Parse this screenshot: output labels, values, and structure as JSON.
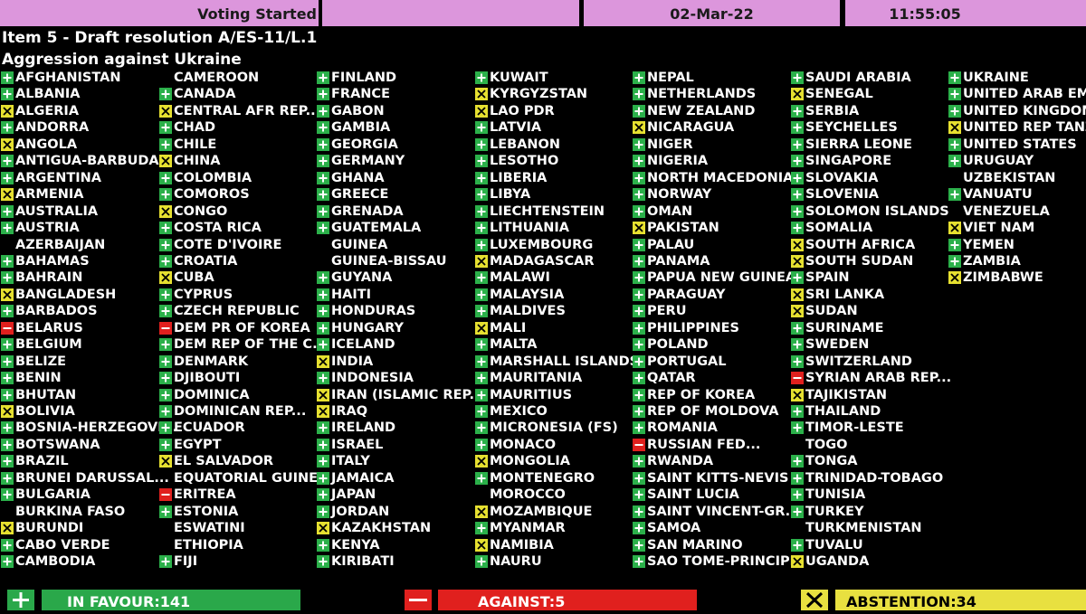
{
  "header": {
    "status": "Voting Started",
    "date": "02-Mar-22",
    "time": "11:55:05"
  },
  "item": {
    "title": "Item 5 - Draft resolution A/ES-11/L.1",
    "subject": "Aggression against Ukraine"
  },
  "columns": [
    [
      {
        "name": "AFGHANISTAN",
        "vote": "yes"
      },
      {
        "name": "ALBANIA",
        "vote": "yes"
      },
      {
        "name": "ALGERIA",
        "vote": "abstain"
      },
      {
        "name": "ANDORRA",
        "vote": "yes"
      },
      {
        "name": "ANGOLA",
        "vote": "abstain"
      },
      {
        "name": "ANTIGUA-BARBUDA",
        "vote": "yes"
      },
      {
        "name": "ARGENTINA",
        "vote": "yes"
      },
      {
        "name": "ARMENIA",
        "vote": "abstain"
      },
      {
        "name": "AUSTRALIA",
        "vote": "yes"
      },
      {
        "name": "AUSTRIA",
        "vote": "yes"
      },
      {
        "name": "AZERBAIJAN"
      },
      {
        "name": "BAHAMAS",
        "vote": "yes"
      },
      {
        "name": "BAHRAIN",
        "vote": "yes"
      },
      {
        "name": "BANGLADESH",
        "vote": "abstain"
      },
      {
        "name": "BARBADOS",
        "vote": "yes"
      },
      {
        "name": "BELARUS",
        "vote": "no"
      },
      {
        "name": "BELGIUM",
        "vote": "yes"
      },
      {
        "name": "BELIZE",
        "vote": "yes"
      },
      {
        "name": "BENIN",
        "vote": "yes"
      },
      {
        "name": "BHUTAN",
        "vote": "yes"
      },
      {
        "name": "BOLIVIA",
        "vote": "abstain"
      },
      {
        "name": "BOSNIA-HERZEGOVI...",
        "vote": "yes"
      },
      {
        "name": "BOTSWANA",
        "vote": "yes"
      },
      {
        "name": "BRAZIL",
        "vote": "yes"
      },
      {
        "name": "BRUNEI DARUSSAL...",
        "vote": "yes"
      },
      {
        "name": "BULGARIA",
        "vote": "yes"
      },
      {
        "name": "BURKINA FASO"
      },
      {
        "name": "BURUNDI",
        "vote": "abstain"
      },
      {
        "name": "CABO VERDE",
        "vote": "yes"
      },
      {
        "name": "CAMBODIA",
        "vote": "yes"
      }
    ],
    [
      {
        "name": "CAMEROON"
      },
      {
        "name": "CANADA",
        "vote": "yes"
      },
      {
        "name": "CENTRAL AFR REP....",
        "vote": "abstain"
      },
      {
        "name": "CHAD",
        "vote": "yes"
      },
      {
        "name": "CHILE",
        "vote": "yes"
      },
      {
        "name": "CHINA",
        "vote": "abstain"
      },
      {
        "name": "COLOMBIA",
        "vote": "yes"
      },
      {
        "name": "COMOROS",
        "vote": "yes"
      },
      {
        "name": "CONGO",
        "vote": "abstain"
      },
      {
        "name": "COSTA RICA",
        "vote": "yes"
      },
      {
        "name": "COTE D'IVOIRE",
        "vote": "yes"
      },
      {
        "name": "CROATIA",
        "vote": "yes"
      },
      {
        "name": "CUBA",
        "vote": "abstain"
      },
      {
        "name": "CYPRUS",
        "vote": "yes"
      },
      {
        "name": "CZECH REPUBLIC",
        "vote": "yes"
      },
      {
        "name": "DEM PR OF KOREA",
        "vote": "no"
      },
      {
        "name": "DEM REP OF THE C...",
        "vote": "yes"
      },
      {
        "name": "DENMARK",
        "vote": "yes"
      },
      {
        "name": "DJIBOUTI",
        "vote": "yes"
      },
      {
        "name": "DOMINICA",
        "vote": "yes"
      },
      {
        "name": "DOMINICAN REP...",
        "vote": "yes"
      },
      {
        "name": "ECUADOR",
        "vote": "yes"
      },
      {
        "name": "EGYPT",
        "vote": "yes"
      },
      {
        "name": "EL SALVADOR",
        "vote": "abstain"
      },
      {
        "name": "EQUATORIAL GUINEA"
      },
      {
        "name": "ERITREA",
        "vote": "no"
      },
      {
        "name": "ESTONIA",
        "vote": "yes"
      },
      {
        "name": "ESWATINI"
      },
      {
        "name": "ETHIOPIA"
      },
      {
        "name": "FIJI",
        "vote": "yes"
      }
    ],
    [
      {
        "name": "FINLAND",
        "vote": "yes"
      },
      {
        "name": "FRANCE",
        "vote": "yes"
      },
      {
        "name": "GABON",
        "vote": "yes"
      },
      {
        "name": "GAMBIA",
        "vote": "yes"
      },
      {
        "name": "GEORGIA",
        "vote": "yes"
      },
      {
        "name": "GERMANY",
        "vote": "yes"
      },
      {
        "name": "GHANA",
        "vote": "yes"
      },
      {
        "name": "GREECE",
        "vote": "yes"
      },
      {
        "name": "GRENADA",
        "vote": "yes"
      },
      {
        "name": "GUATEMALA",
        "vote": "yes"
      },
      {
        "name": "GUINEA"
      },
      {
        "name": "GUINEA-BISSAU"
      },
      {
        "name": "GUYANA",
        "vote": "yes"
      },
      {
        "name": "HAITI",
        "vote": "yes"
      },
      {
        "name": "HONDURAS",
        "vote": "yes"
      },
      {
        "name": "HUNGARY",
        "vote": "yes"
      },
      {
        "name": "ICELAND",
        "vote": "yes"
      },
      {
        "name": "INDIA",
        "vote": "abstain"
      },
      {
        "name": "INDONESIA",
        "vote": "yes"
      },
      {
        "name": "IRAN (ISLAMIC REP...",
        "vote": "abstain"
      },
      {
        "name": "IRAQ",
        "vote": "abstain"
      },
      {
        "name": "IRELAND",
        "vote": "yes"
      },
      {
        "name": "ISRAEL",
        "vote": "yes"
      },
      {
        "name": "ITALY",
        "vote": "yes"
      },
      {
        "name": "JAMAICA",
        "vote": "yes"
      },
      {
        "name": "JAPAN",
        "vote": "yes"
      },
      {
        "name": "JORDAN",
        "vote": "yes"
      },
      {
        "name": "KAZAKHSTAN",
        "vote": "abstain"
      },
      {
        "name": "KENYA",
        "vote": "yes"
      },
      {
        "name": "KIRIBATI",
        "vote": "yes"
      }
    ],
    [
      {
        "name": "KUWAIT",
        "vote": "yes"
      },
      {
        "name": "KYRGYZSTAN",
        "vote": "abstain"
      },
      {
        "name": "LAO PDR",
        "vote": "abstain"
      },
      {
        "name": "LATVIA",
        "vote": "yes"
      },
      {
        "name": "LEBANON",
        "vote": "yes"
      },
      {
        "name": "LESOTHO",
        "vote": "yes"
      },
      {
        "name": "LIBERIA",
        "vote": "yes"
      },
      {
        "name": "LIBYA",
        "vote": "yes"
      },
      {
        "name": "LIECHTENSTEIN",
        "vote": "yes"
      },
      {
        "name": "LITHUANIA",
        "vote": "yes"
      },
      {
        "name": "LUXEMBOURG",
        "vote": "yes"
      },
      {
        "name": "MADAGASCAR",
        "vote": "abstain"
      },
      {
        "name": "MALAWI",
        "vote": "yes"
      },
      {
        "name": "MALAYSIA",
        "vote": "yes"
      },
      {
        "name": "MALDIVES",
        "vote": "yes"
      },
      {
        "name": "MALI",
        "vote": "abstain"
      },
      {
        "name": "MALTA",
        "vote": "yes"
      },
      {
        "name": "MARSHALL ISLANDS",
        "vote": "yes"
      },
      {
        "name": "MAURITANIA",
        "vote": "yes"
      },
      {
        "name": "MAURITIUS",
        "vote": "yes"
      },
      {
        "name": "MEXICO",
        "vote": "yes"
      },
      {
        "name": "MICRONESIA (FS)",
        "vote": "yes"
      },
      {
        "name": "MONACO",
        "vote": "yes"
      },
      {
        "name": "MONGOLIA",
        "vote": "abstain"
      },
      {
        "name": "MONTENEGRO",
        "vote": "yes"
      },
      {
        "name": "MOROCCO"
      },
      {
        "name": "MOZAMBIQUE",
        "vote": "abstain"
      },
      {
        "name": "MYANMAR",
        "vote": "yes"
      },
      {
        "name": "NAMIBIA",
        "vote": "abstain"
      },
      {
        "name": "NAURU",
        "vote": "yes"
      }
    ],
    [
      {
        "name": "NEPAL",
        "vote": "yes"
      },
      {
        "name": "NETHERLANDS",
        "vote": "yes"
      },
      {
        "name": "NEW ZEALAND",
        "vote": "yes"
      },
      {
        "name": "NICARAGUA",
        "vote": "abstain"
      },
      {
        "name": "NIGER",
        "vote": "yes"
      },
      {
        "name": "NIGERIA",
        "vote": "yes"
      },
      {
        "name": "NORTH MACEDONIA",
        "vote": "yes"
      },
      {
        "name": "NORWAY",
        "vote": "yes"
      },
      {
        "name": "OMAN",
        "vote": "yes"
      },
      {
        "name": "PAKISTAN",
        "vote": "abstain"
      },
      {
        "name": "PALAU",
        "vote": "yes"
      },
      {
        "name": "PANAMA",
        "vote": "yes"
      },
      {
        "name": "PAPUA NEW GUINEA",
        "vote": "yes"
      },
      {
        "name": "PARAGUAY",
        "vote": "yes"
      },
      {
        "name": "PERU",
        "vote": "yes"
      },
      {
        "name": "PHILIPPINES",
        "vote": "yes"
      },
      {
        "name": "POLAND",
        "vote": "yes"
      },
      {
        "name": "PORTUGAL",
        "vote": "yes"
      },
      {
        "name": "QATAR",
        "vote": "yes"
      },
      {
        "name": "REP OF KOREA",
        "vote": "yes"
      },
      {
        "name": "REP OF MOLDOVA",
        "vote": "yes"
      },
      {
        "name": "ROMANIA",
        "vote": "yes"
      },
      {
        "name": "RUSSIAN FED...",
        "vote": "no"
      },
      {
        "name": "RWANDA",
        "vote": "yes"
      },
      {
        "name": "SAINT KITTS-NEVIS",
        "vote": "yes"
      },
      {
        "name": "SAINT LUCIA",
        "vote": "yes"
      },
      {
        "name": "SAINT VINCENT-GR...",
        "vote": "yes"
      },
      {
        "name": "SAMOA",
        "vote": "yes"
      },
      {
        "name": "SAN MARINO",
        "vote": "yes"
      },
      {
        "name": "SAO TOME-PRINCIPE",
        "vote": "yes"
      }
    ],
    [
      {
        "name": "SAUDI ARABIA",
        "vote": "yes"
      },
      {
        "name": "SENEGAL",
        "vote": "abstain"
      },
      {
        "name": "SERBIA",
        "vote": "yes"
      },
      {
        "name": "SEYCHELLES",
        "vote": "yes"
      },
      {
        "name": "SIERRA LEONE",
        "vote": "yes"
      },
      {
        "name": "SINGAPORE",
        "vote": "yes"
      },
      {
        "name": "SLOVAKIA",
        "vote": "yes"
      },
      {
        "name": "SLOVENIA",
        "vote": "yes"
      },
      {
        "name": "SOLOMON ISLANDS",
        "vote": "yes"
      },
      {
        "name": "SOMALIA",
        "vote": "yes"
      },
      {
        "name": "SOUTH AFRICA",
        "vote": "abstain"
      },
      {
        "name": "SOUTH SUDAN",
        "vote": "abstain"
      },
      {
        "name": "SPAIN",
        "vote": "yes"
      },
      {
        "name": "SRI LANKA",
        "vote": "abstain"
      },
      {
        "name": "SUDAN",
        "vote": "abstain"
      },
      {
        "name": "SURINAME",
        "vote": "yes"
      },
      {
        "name": "SWEDEN",
        "vote": "yes"
      },
      {
        "name": "SWITZERLAND",
        "vote": "yes"
      },
      {
        "name": "SYRIAN ARAB REP...",
        "vote": "no"
      },
      {
        "name": "TAJIKISTAN",
        "vote": "abstain"
      },
      {
        "name": "THAILAND",
        "vote": "yes"
      },
      {
        "name": "TIMOR-LESTE",
        "vote": "yes"
      },
      {
        "name": "TOGO"
      },
      {
        "name": "TONGA",
        "vote": "yes"
      },
      {
        "name": "TRINIDAD-TOBAGO",
        "vote": "yes"
      },
      {
        "name": "TUNISIA",
        "vote": "yes"
      },
      {
        "name": "TURKEY",
        "vote": "yes"
      },
      {
        "name": "TURKMENISTAN"
      },
      {
        "name": "TUVALU",
        "vote": "yes"
      },
      {
        "name": "UGANDA",
        "vote": "abstain"
      }
    ],
    [
      {
        "name": "UKRAINE",
        "vote": "yes"
      },
      {
        "name": "UNITED ARAB EMIR...",
        "vote": "yes"
      },
      {
        "name": "UNITED KINGDOM",
        "vote": "yes"
      },
      {
        "name": "UNITED REP TANZA...",
        "vote": "abstain"
      },
      {
        "name": "UNITED STATES",
        "vote": "yes"
      },
      {
        "name": "URUGUAY",
        "vote": "yes"
      },
      {
        "name": "UZBEKISTAN"
      },
      {
        "name": "VANUATU",
        "vote": "yes"
      },
      {
        "name": "VENEZUELA"
      },
      {
        "name": "VIET NAM",
        "vote": "abstain"
      },
      {
        "name": "YEMEN",
        "vote": "yes"
      },
      {
        "name": "ZAMBIA",
        "vote": "yes"
      },
      {
        "name": "ZIMBABWE",
        "vote": "abstain"
      }
    ]
  ],
  "totals": {
    "in_favour": "IN FAVOUR:141",
    "against": "AGAINST:5",
    "abstention": "ABSTENTION:34"
  }
}
